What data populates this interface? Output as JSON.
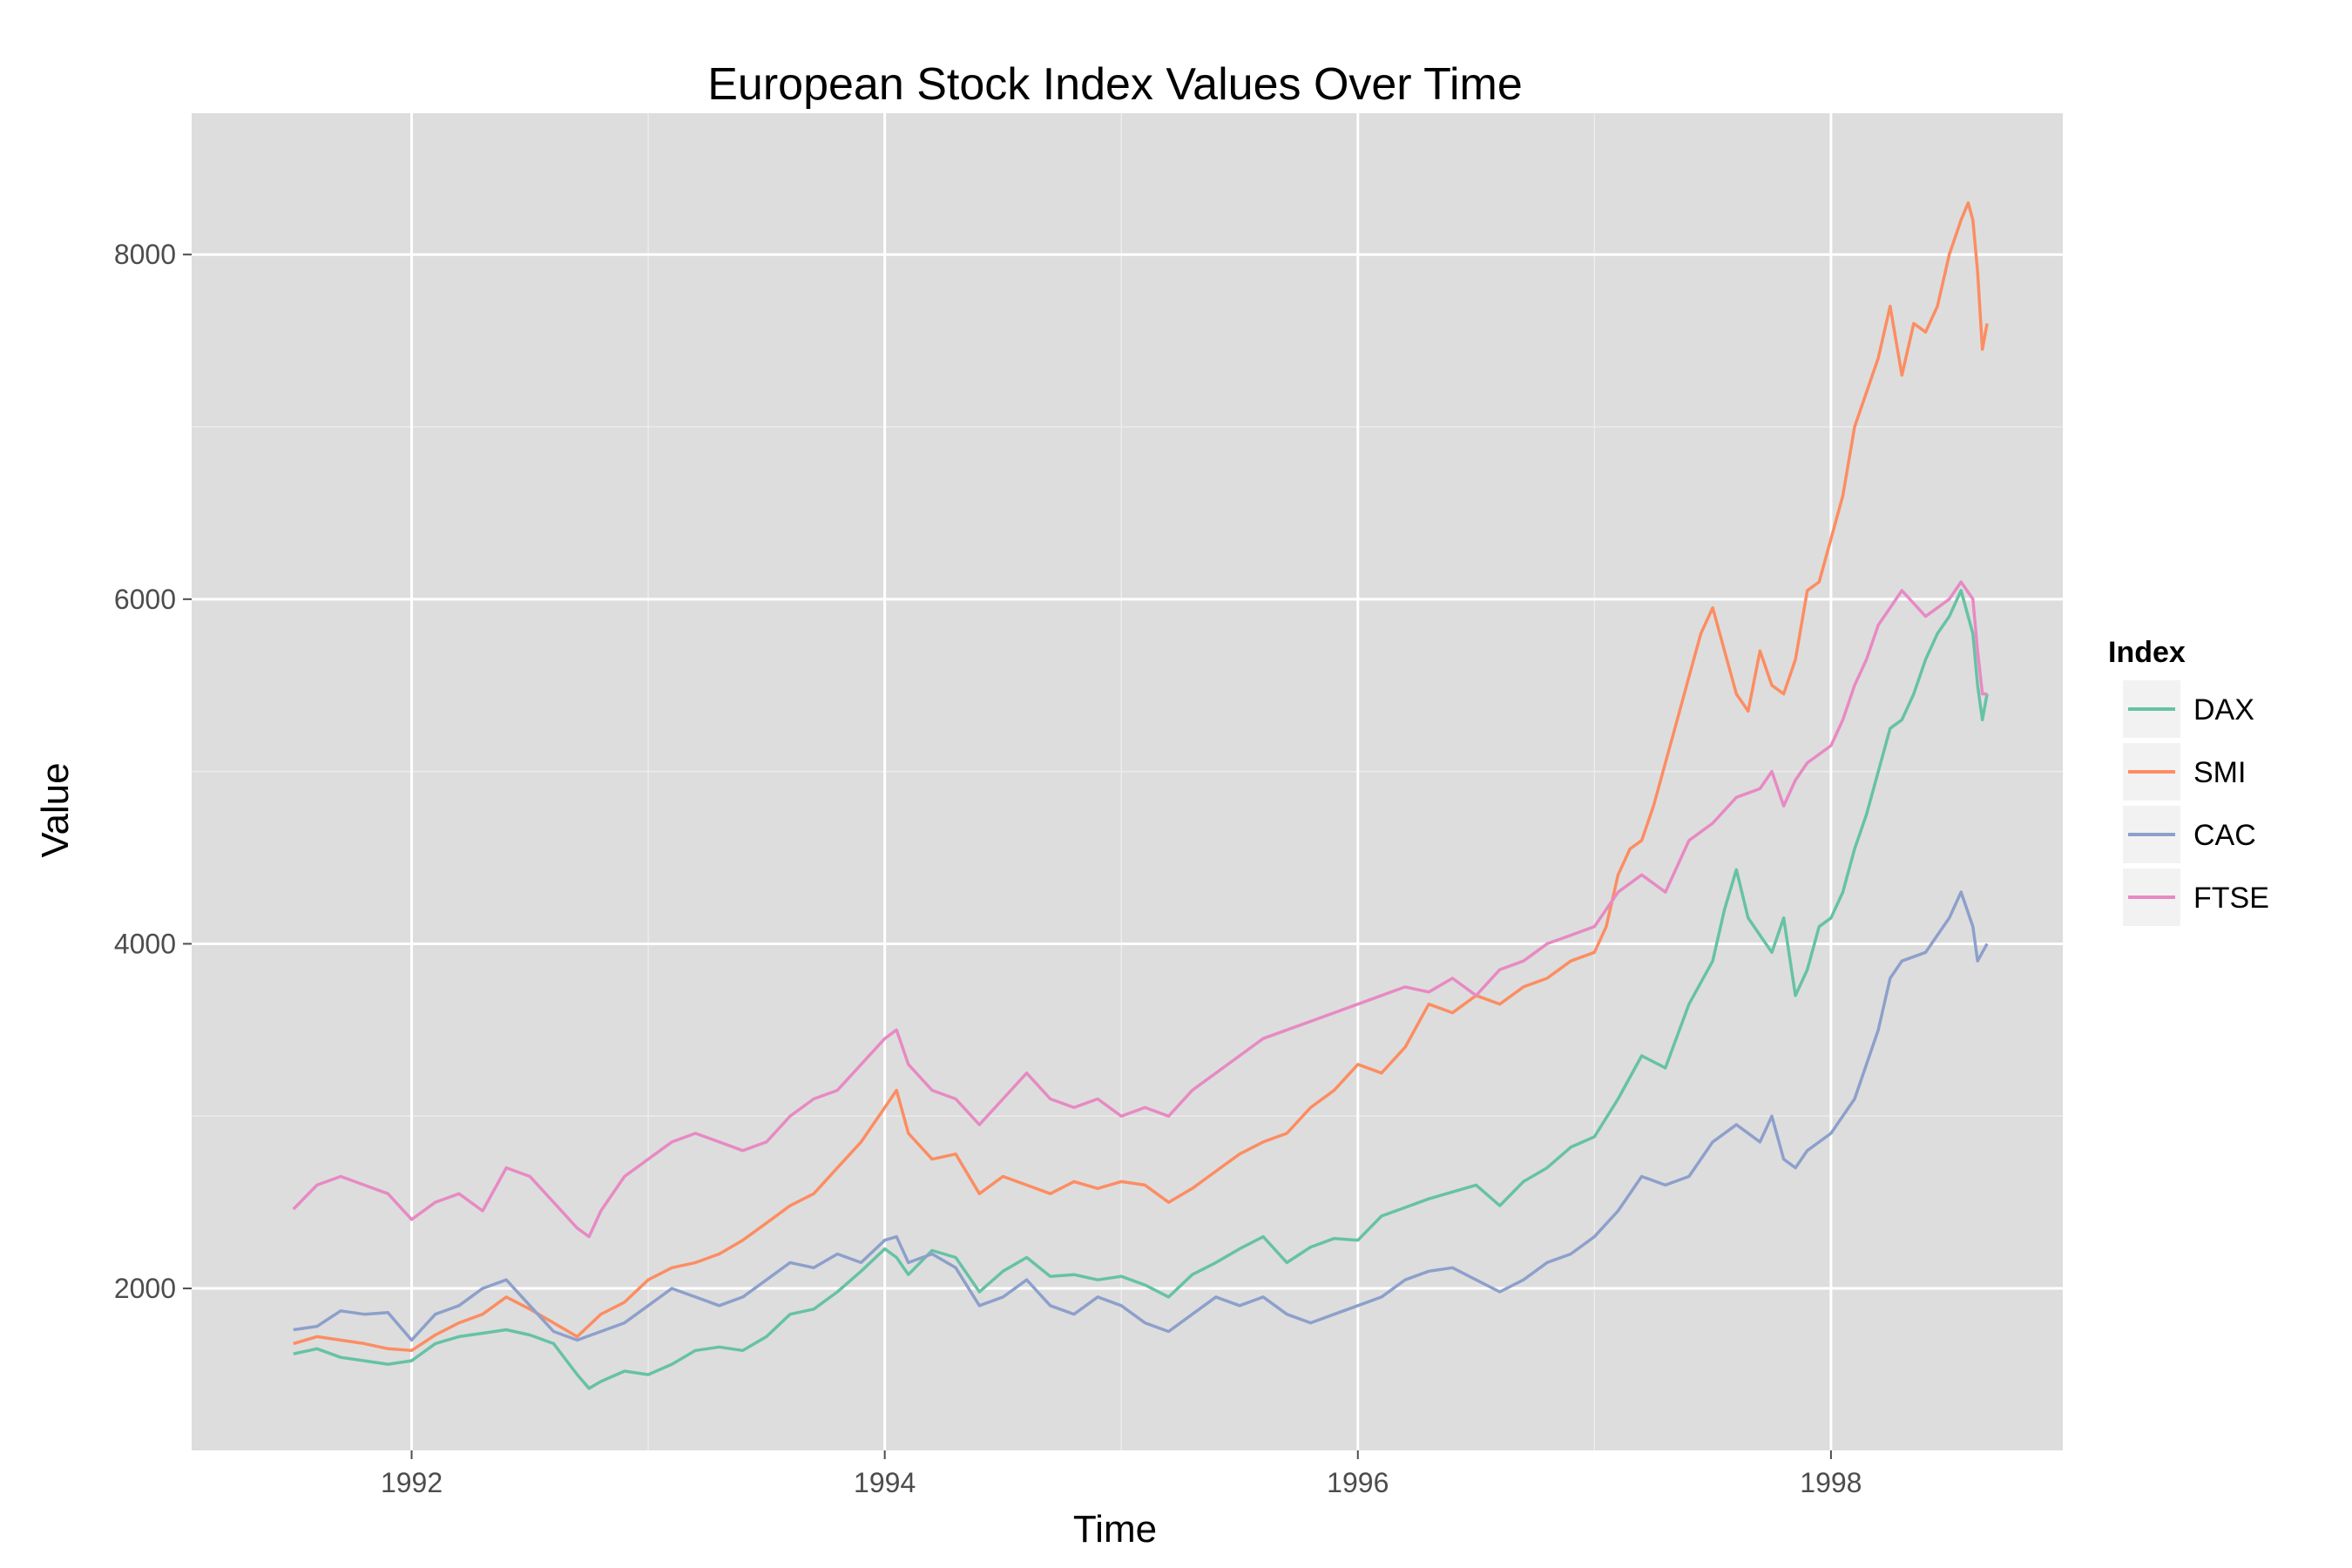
{
  "chart_data": {
    "type": "line",
    "title": "European Stock Index Values Over Time",
    "xlabel": "Time",
    "ylabel": "Value",
    "xlim": [
      1991.07,
      1998.98
    ],
    "ylim": [
      1060,
      8820
    ],
    "x_ticks": [
      1992,
      1994,
      1996,
      1998
    ],
    "x_tick_labels": [
      "1992",
      "1994",
      "1996",
      "1998"
    ],
    "y_ticks": [
      2000,
      4000,
      6000,
      8000
    ],
    "y_tick_labels": [
      "2000",
      "4000",
      "6000",
      "8000"
    ],
    "legend_title": "Index",
    "legend_position": "right",
    "grid": true,
    "background": "#dddddd",
    "grid_color": "#ffffff",
    "series": [
      {
        "name": "DAX",
        "color": "#66c2a5",
        "x": [
          1991.5,
          1991.6,
          1991.7,
          1991.8,
          1991.9,
          1992.0,
          1992.1,
          1992.2,
          1992.3,
          1992.4,
          1992.5,
          1992.6,
          1992.7,
          1992.75,
          1992.8,
          1992.9,
          1993.0,
          1993.1,
          1993.2,
          1993.3,
          1993.4,
          1993.5,
          1993.6,
          1993.7,
          1993.8,
          1993.9,
          1994.0,
          1994.05,
          1994.1,
          1994.2,
          1994.3,
          1994.4,
          1994.5,
          1994.6,
          1994.7,
          1994.8,
          1994.9,
          1995.0,
          1995.1,
          1995.2,
          1995.3,
          1995.4,
          1995.5,
          1995.6,
          1995.7,
          1995.8,
          1995.9,
          1996.0,
          1996.1,
          1996.2,
          1996.3,
          1996.4,
          1996.5,
          1996.6,
          1996.7,
          1996.8,
          1996.9,
          1997.0,
          1997.1,
          1997.2,
          1997.3,
          1997.4,
          1997.5,
          1997.55,
          1997.6,
          1997.65,
          1997.7,
          1997.75,
          1997.8,
          1997.85,
          1997.9,
          1997.95,
          1998.0,
          1998.05,
          1998.1,
          1998.15,
          1998.2,
          1998.25,
          1998.3,
          1998.35,
          1998.4,
          1998.45,
          1998.5,
          1998.55,
          1998.6,
          1998.62,
          1998.64,
          1998.66
        ],
        "values": [
          1620,
          1650,
          1600,
          1580,
          1560,
          1580,
          1680,
          1720,
          1740,
          1760,
          1730,
          1680,
          1500,
          1420,
          1460,
          1520,
          1500,
          1560,
          1640,
          1660,
          1640,
          1720,
          1850,
          1880,
          1980,
          2100,
          2230,
          2180,
          2080,
          2220,
          2180,
          1980,
          2100,
          2180,
          2070,
          2080,
          2050,
          2070,
          2020,
          1950,
          2080,
          2150,
          2230,
          2300,
          2150,
          2240,
          2290,
          2280,
          2420,
          2470,
          2520,
          2560,
          2600,
          2480,
          2620,
          2700,
          2820,
          2880,
          3100,
          3350,
          3280,
          3650,
          3900,
          4200,
          4430,
          4150,
          4050,
          3950,
          4150,
          3700,
          3850,
          4100,
          4150,
          4300,
          4550,
          4750,
          5000,
          5250,
          5300,
          5450,
          5650,
          5800,
          5900,
          6050,
          5800,
          5500,
          5300,
          5450
        ]
      },
      {
        "name": "SMI",
        "color": "#fc8d62",
        "x": [
          1991.5,
          1991.6,
          1991.7,
          1991.8,
          1991.9,
          1992.0,
          1992.1,
          1992.2,
          1992.3,
          1992.4,
          1992.5,
          1992.6,
          1992.7,
          1992.8,
          1992.9,
          1993.0,
          1993.1,
          1993.2,
          1993.3,
          1993.4,
          1993.5,
          1993.6,
          1993.7,
          1993.8,
          1993.9,
          1994.0,
          1994.05,
          1994.1,
          1994.2,
          1994.3,
          1994.4,
          1994.5,
          1994.6,
          1994.7,
          1994.8,
          1994.9,
          1995.0,
          1995.1,
          1995.2,
          1995.3,
          1995.4,
          1995.5,
          1995.6,
          1995.7,
          1995.8,
          1995.9,
          1996.0,
          1996.1,
          1996.2,
          1996.3,
          1996.4,
          1996.5,
          1996.6,
          1996.7,
          1996.8,
          1996.9,
          1997.0,
          1997.05,
          1997.1,
          1997.15,
          1997.2,
          1997.25,
          1997.3,
          1997.35,
          1997.4,
          1997.45,
          1997.5,
          1997.55,
          1997.6,
          1997.65,
          1997.7,
          1997.75,
          1997.8,
          1997.85,
          1997.9,
          1997.95,
          1998.0,
          1998.05,
          1998.1,
          1998.15,
          1998.2,
          1998.25,
          1998.3,
          1998.35,
          1998.4,
          1998.45,
          1998.5,
          1998.55,
          1998.58,
          1998.6,
          1998.62,
          1998.64,
          1998.66
        ],
        "values": [
          1680,
          1720,
          1700,
          1680,
          1650,
          1640,
          1730,
          1800,
          1850,
          1950,
          1880,
          1800,
          1720,
          1850,
          1920,
          2050,
          2120,
          2150,
          2200,
          2280,
          2380,
          2480,
          2550,
          2700,
          2850,
          3050,
          3150,
          2900,
          2750,
          2780,
          2550,
          2650,
          2600,
          2550,
          2620,
          2580,
          2620,
          2600,
          2500,
          2580,
          2680,
          2780,
          2850,
          2900,
          3050,
          3150,
          3300,
          3250,
          3400,
          3650,
          3600,
          3700,
          3650,
          3750,
          3800,
          3900,
          3950,
          4100,
          4400,
          4550,
          4600,
          4800,
          5050,
          5300,
          5550,
          5800,
          5950,
          5700,
          5450,
          5350,
          5700,
          5500,
          5450,
          5650,
          6050,
          6100,
          6350,
          6600,
          7000,
          7200,
          7400,
          7700,
          7300,
          7600,
          7550,
          7700,
          8000,
          8200,
          8300,
          8200,
          7900,
          7450,
          7600
        ]
      },
      {
        "name": "CAC",
        "color": "#8da0cb",
        "x": [
          1991.5,
          1991.6,
          1991.7,
          1991.8,
          1991.9,
          1992.0,
          1992.1,
          1992.2,
          1992.3,
          1992.4,
          1992.5,
          1992.6,
          1992.7,
          1992.8,
          1992.9,
          1993.0,
          1993.1,
          1993.2,
          1993.3,
          1993.4,
          1993.5,
          1993.6,
          1993.7,
          1993.8,
          1993.9,
          1994.0,
          1994.05,
          1994.1,
          1994.2,
          1994.3,
          1994.4,
          1994.5,
          1994.6,
          1994.7,
          1994.8,
          1994.9,
          1995.0,
          1995.1,
          1995.2,
          1995.3,
          1995.4,
          1995.5,
          1995.6,
          1995.7,
          1995.8,
          1995.9,
          1996.0,
          1996.1,
          1996.2,
          1996.3,
          1996.4,
          1996.5,
          1996.6,
          1996.7,
          1996.8,
          1996.9,
          1997.0,
          1997.1,
          1997.2,
          1997.3,
          1997.4,
          1997.5,
          1997.6,
          1997.7,
          1997.75,
          1997.8,
          1997.85,
          1997.9,
          1998.0,
          1998.1,
          1998.2,
          1998.25,
          1998.3,
          1998.4,
          1998.5,
          1998.55,
          1998.6,
          1998.62,
          1998.64,
          1998.66
        ],
        "values": [
          1760,
          1780,
          1870,
          1850,
          1860,
          1700,
          1850,
          1900,
          2000,
          2050,
          1900,
          1750,
          1700,
          1750,
          1800,
          1900,
          2000,
          1950,
          1900,
          1950,
          2050,
          2150,
          2120,
          2200,
          2150,
          2280,
          2300,
          2150,
          2200,
          2120,
          1900,
          1950,
          2050,
          1900,
          1850,
          1950,
          1900,
          1800,
          1750,
          1850,
          1950,
          1900,
          1950,
          1850,
          1800,
          1850,
          1900,
          1950,
          2050,
          2100,
          2120,
          2050,
          1980,
          2050,
          2150,
          2200,
          2300,
          2450,
          2650,
          2600,
          2650,
          2850,
          2950,
          2850,
          3000,
          2750,
          2700,
          2800,
          2900,
          3100,
          3500,
          3800,
          3900,
          3950,
          4150,
          4300,
          4100,
          3900,
          3950,
          4000
        ]
      },
      {
        "name": "FTSE",
        "color": "#e78ac3",
        "x": [
          1991.5,
          1991.6,
          1991.7,
          1991.8,
          1991.9,
          1992.0,
          1992.1,
          1992.2,
          1992.3,
          1992.4,
          1992.5,
          1992.6,
          1992.7,
          1992.75,
          1992.8,
          1992.9,
          1993.0,
          1993.1,
          1993.2,
          1993.3,
          1993.4,
          1993.5,
          1993.6,
          1993.7,
          1993.8,
          1993.9,
          1994.0,
          1994.05,
          1994.1,
          1994.2,
          1994.3,
          1994.4,
          1994.5,
          1994.6,
          1994.7,
          1994.8,
          1994.9,
          1995.0,
          1995.1,
          1995.2,
          1995.3,
          1995.4,
          1995.5,
          1995.6,
          1995.7,
          1995.8,
          1995.9,
          1996.0,
          1996.1,
          1996.2,
          1996.3,
          1996.4,
          1996.5,
          1996.6,
          1996.7,
          1996.8,
          1996.9,
          1997.0,
          1997.1,
          1997.2,
          1997.3,
          1997.4,
          1997.5,
          1997.6,
          1997.7,
          1997.75,
          1997.8,
          1997.85,
          1997.9,
          1998.0,
          1998.05,
          1998.1,
          1998.15,
          1998.2,
          1998.25,
          1998.3,
          1998.4,
          1998.5,
          1998.55,
          1998.6,
          1998.62,
          1998.64,
          1998.66
        ],
        "values": [
          2460,
          2600,
          2650,
          2600,
          2550,
          2400,
          2500,
          2550,
          2450,
          2700,
          2650,
          2500,
          2350,
          2300,
          2450,
          2650,
          2750,
          2850,
          2900,
          2850,
          2800,
          2850,
          3000,
          3100,
          3150,
          3300,
          3450,
          3500,
          3300,
          3150,
          3100,
          2950,
          3100,
          3250,
          3100,
          3050,
          3100,
          3000,
          3050,
          3000,
          3150,
          3250,
          3350,
          3450,
          3500,
          3550,
          3600,
          3650,
          3700,
          3750,
          3720,
          3800,
          3700,
          3850,
          3900,
          4000,
          4050,
          4100,
          4300,
          4400,
          4300,
          4600,
          4700,
          4850,
          4900,
          5000,
          4800,
          4950,
          5050,
          5150,
          5300,
          5500,
          5650,
          5850,
          5950,
          6050,
          5900,
          6000,
          6100,
          6000,
          5700,
          5450,
          5450
        ]
      }
    ]
  }
}
